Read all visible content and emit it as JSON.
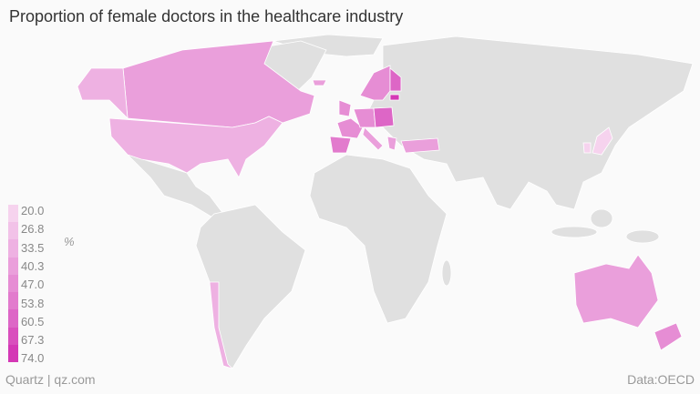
{
  "title": "Proportion of female doctors in the healthcare industry",
  "footer": {
    "source": "Quartz | qz.com",
    "data": "Data:OECD"
  },
  "chart_data": {
    "type": "choropleth",
    "title": "Proportion of female doctors in the healthcare industry",
    "unit": "%",
    "legend": {
      "placement": "bottom-left",
      "ticks": [
        "20.0",
        "26.8",
        "33.5",
        "40.3",
        "47.0",
        "53.8",
        "60.5",
        "67.3",
        "74.0"
      ],
      "colors": [
        "#f6d3ee",
        "#f2c2e8",
        "#eeb1e2",
        "#ea9fdb",
        "#e68dd4",
        "#e27bcd",
        "#dd66c6",
        "#d94fbd",
        "#d438b5"
      ]
    },
    "countries": [
      {
        "name": "United States",
        "value": 33
      },
      {
        "name": "Canada",
        "value": 42
      },
      {
        "name": "Chile",
        "value": 35
      },
      {
        "name": "Iceland",
        "value": 38
      },
      {
        "name": "United Kingdom",
        "value": 47
      },
      {
        "name": "France",
        "value": 44
      },
      {
        "name": "Spain",
        "value": 51
      },
      {
        "name": "Germany",
        "value": 45
      },
      {
        "name": "Poland",
        "value": 57
      },
      {
        "name": "Italy",
        "value": 40
      },
      {
        "name": "Greece",
        "value": 40
      },
      {
        "name": "Sweden",
        "value": 47
      },
      {
        "name": "Finland",
        "value": 56
      },
      {
        "name": "Estonia",
        "value": 74
      },
      {
        "name": "Turkey",
        "value": 38
      },
      {
        "name": "Japan",
        "value": 20
      },
      {
        "name": "South Korea",
        "value": 21
      },
      {
        "name": "Australia",
        "value": 39
      },
      {
        "name": "New Zealand",
        "value": 44
      }
    ]
  }
}
